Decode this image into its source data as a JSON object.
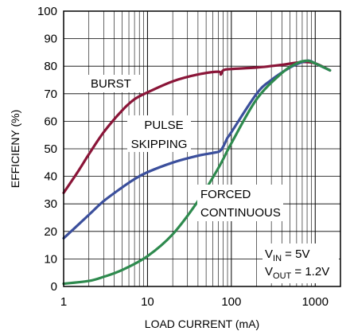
{
  "chart_data": {
    "type": "line",
    "xlabel": "LOAD CURRENT (mA)",
    "ylabel": "EFFICIENY (%)",
    "xscale": "log",
    "xlim": [
      1,
      2000
    ],
    "ylim": [
      0,
      100
    ],
    "grid": true,
    "x_ticks": [
      1,
      10,
      100,
      1000
    ],
    "x_tick_labels": [
      "1",
      "10",
      "100",
      "1000"
    ],
    "y_ticks": [
      0,
      10,
      20,
      30,
      40,
      50,
      60,
      70,
      80,
      90,
      100
    ],
    "y_tick_labels": [
      "0",
      "10",
      "20",
      "30",
      "40",
      "50",
      "60",
      "70",
      "80",
      "90",
      "100"
    ],
    "series": [
      {
        "name": "BURST",
        "color": "#8a1538",
        "points": [
          [
            1,
            34
          ],
          [
            1.5,
            42
          ],
          [
            2,
            48
          ],
          [
            3,
            56
          ],
          [
            5,
            64
          ],
          [
            7,
            68
          ],
          [
            10,
            70.5
          ],
          [
            20,
            74.5
          ],
          [
            40,
            77
          ],
          [
            70,
            78
          ],
          [
            75,
            77
          ],
          [
            80,
            78.5
          ],
          [
            100,
            79
          ],
          [
            200,
            79.5
          ],
          [
            400,
            80.5
          ],
          [
            700,
            81.5
          ],
          [
            1000,
            81
          ],
          [
            1500,
            78.5
          ]
        ]
      },
      {
        "name": "PULSE SKIPPING",
        "color": "#3b4f9c",
        "points": [
          [
            1,
            17.5
          ],
          [
            2,
            26
          ],
          [
            3,
            31
          ],
          [
            5,
            36
          ],
          [
            7,
            39
          ],
          [
            10,
            41.5
          ],
          [
            20,
            45
          ],
          [
            40,
            47.5
          ],
          [
            60,
            48.5
          ],
          [
            75,
            49.5
          ],
          [
            90,
            54
          ],
          [
            100,
            56
          ],
          [
            200,
            70
          ],
          [
            300,
            75
          ],
          [
            500,
            79.5
          ],
          [
            700,
            81.5
          ],
          [
            850,
            82
          ],
          [
            1000,
            81
          ],
          [
            1500,
            78.5
          ]
        ]
      },
      {
        "name": "FORCED CONTINUOUS",
        "color": "#2e8a4e",
        "points": [
          [
            1,
            1
          ],
          [
            2,
            2
          ],
          [
            3,
            3.5
          ],
          [
            5,
            6
          ],
          [
            10,
            11
          ],
          [
            20,
            19
          ],
          [
            40,
            31
          ],
          [
            70,
            43
          ],
          [
            100,
            52
          ],
          [
            200,
            68
          ],
          [
            400,
            77.5
          ],
          [
            600,
            81
          ],
          [
            800,
            82
          ],
          [
            1000,
            81
          ],
          [
            1500,
            78.5
          ]
        ]
      }
    ],
    "annotations": {
      "burst": "BURST",
      "pulse_line1": "PULSE",
      "pulse_line2": "SKIPPING",
      "forced_line1": "FORCED",
      "forced_line2": "CONTINUOUS",
      "vin_main": "V",
      "vin_sub": "IN",
      "vin_rest": " = 5V",
      "vout_main": "V",
      "vout_sub": "OUT",
      "vout_rest": " = 1.2V"
    }
  }
}
